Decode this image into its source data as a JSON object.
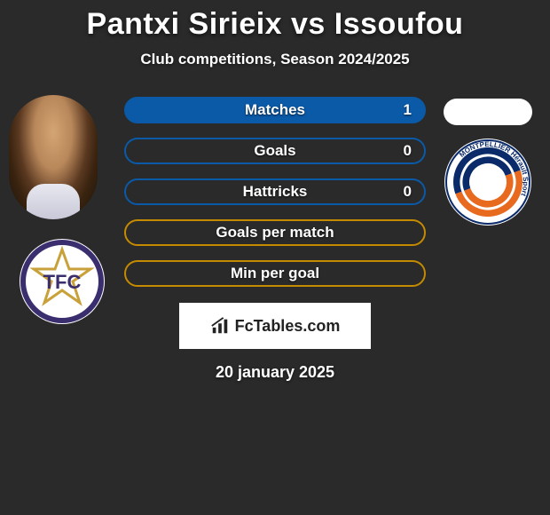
{
  "title": "Pantxi Sirieix vs Issoufou",
  "subtitle": "Club competitions, Season 2024/2025",
  "date": "20 january 2025",
  "branding": "FcTables.com",
  "colors": {
    "right_accent": "#0a5aa8",
    "left_accent": "#c48a00",
    "background": "#2a2a2a",
    "bar_border_blue": "#0a5aa8",
    "bar_border_yellow": "#c48a00",
    "bar_fill_blue": "#0a5aa8"
  },
  "left_club": {
    "name": "Toulouse FC",
    "initials": "TFC",
    "primary": "#3a2e6f",
    "secondary": "#c9a13a"
  },
  "right_club": {
    "name": "Montpellier HSC",
    "ring_text": "MONTPELLIER Hérault Sport",
    "year": "1974",
    "blue": "#0a2a6a",
    "orange": "#e86a1f"
  },
  "stats": [
    {
      "label": "Matches",
      "right_value": "1",
      "filled": true,
      "border": "#0a5aa8",
      "fill": "#0a5aa8"
    },
    {
      "label": "Goals",
      "right_value": "0",
      "filled": false,
      "border": "#0a5aa8",
      "fill": null
    },
    {
      "label": "Hattricks",
      "right_value": "0",
      "filled": false,
      "border": "#0a5aa8",
      "fill": null
    },
    {
      "label": "Goals per match",
      "right_value": "",
      "filled": false,
      "border": "#c48a00",
      "fill": null
    },
    {
      "label": "Min per goal",
      "right_value": "",
      "filled": false,
      "border": "#c48a00",
      "fill": null
    }
  ]
}
